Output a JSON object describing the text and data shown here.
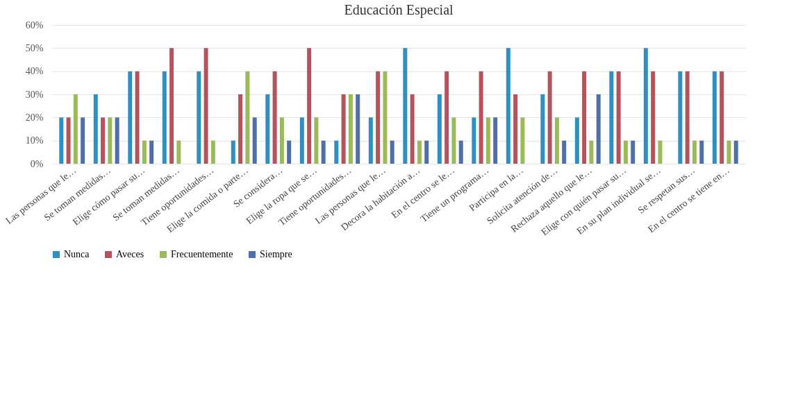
{
  "chart_data": {
    "type": "bar",
    "title": "Educación Especial",
    "categories": [
      "Las personas que le…",
      "Se toman medidas…",
      "Elige cómo pasar su…",
      "Se toman medidas…",
      "Tiene oportunidades…",
      "Elige la comida o parte…",
      "Se considera…",
      "Elige la ropa que se…",
      "Tiene oportunidades…",
      "Las personas que le…",
      "Decora la habitación a…",
      "En el centro se le…",
      "Tiene un programa…",
      "Participa en la…",
      "Solicita atención de…",
      "Rechaza aquello que le…",
      "Elige con quién pasar su…",
      "En su plan individual se…",
      "Se respetan sus…",
      "En el centro se tiene en…"
    ],
    "series": [
      {
        "name": "Nunca",
        "color": "#2f8ec4",
        "values": [
          20,
          30,
          40,
          40,
          40,
          10,
          30,
          20,
          10,
          20,
          50,
          30,
          20,
          50,
          30,
          20,
          40,
          50,
          40,
          40
        ]
      },
      {
        "name": "Aveces",
        "color": "#b5535d",
        "values": [
          20,
          20,
          40,
          50,
          50,
          30,
          40,
          50,
          30,
          40,
          30,
          40,
          40,
          30,
          40,
          40,
          40,
          40,
          40,
          40
        ]
      },
      {
        "name": "Frecuentemente",
        "color": "#9bbb59",
        "values": [
          30,
          20,
          10,
          10,
          10,
          40,
          20,
          20,
          30,
          40,
          10,
          20,
          20,
          20,
          20,
          10,
          10,
          10,
          10,
          10
        ]
      },
      {
        "name": "Siempre",
        "color": "#4f6fa8",
        "values": [
          20,
          20,
          10,
          0,
          0,
          20,
          10,
          10,
          30,
          10,
          10,
          10,
          20,
          0,
          10,
          30,
          10,
          0,
          10,
          10
        ]
      }
    ],
    "ylim": [
      0,
      60
    ],
    "yticks": [
      {
        "value": 0,
        "label": "0%"
      },
      {
        "value": 10,
        "label": "10%"
      },
      {
        "value": 20,
        "label": "20%"
      },
      {
        "value": 30,
        "label": "30%"
      },
      {
        "value": 40,
        "label": "40%"
      },
      {
        "value": 50,
        "label": "50%"
      },
      {
        "value": 60,
        "label": "60%"
      }
    ],
    "grid": "y",
    "legend": "bottom"
  }
}
